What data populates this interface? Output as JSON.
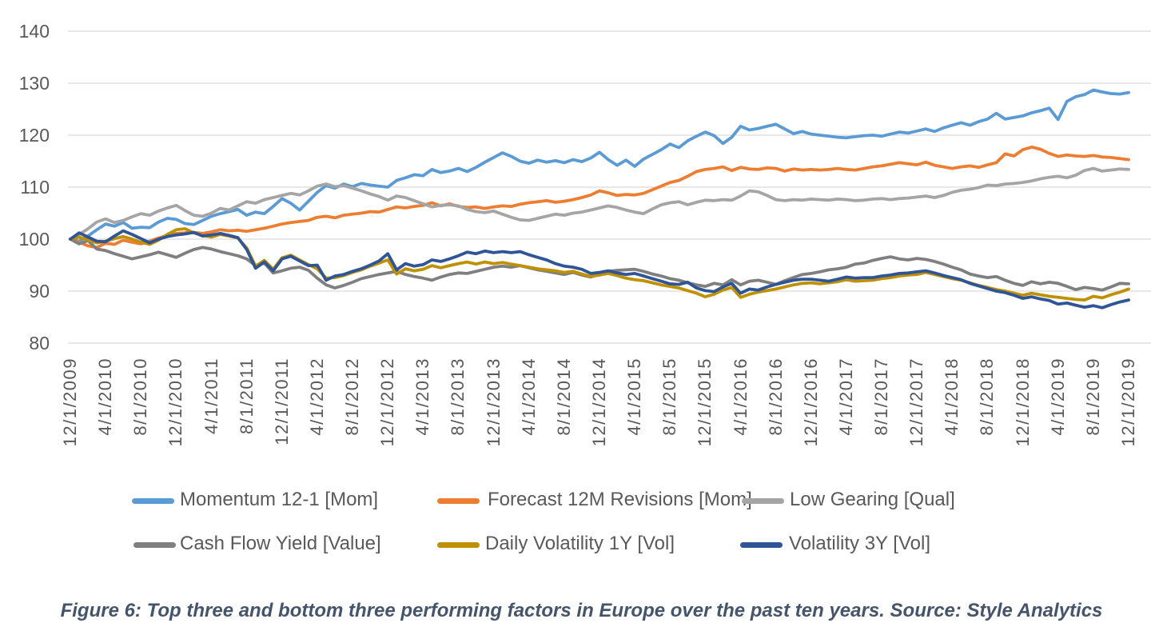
{
  "chart_data": {
    "type": "line",
    "title": "",
    "xlabel": "",
    "ylabel": "",
    "ylim": [
      80,
      140
    ],
    "y_ticks": [
      140,
      130,
      120,
      110,
      100,
      90,
      80
    ],
    "grid": "horizontal",
    "legend_position": "bottom",
    "x_tick_labels": [
      "12/1/2009",
      "4/1/2010",
      "8/1/2010",
      "12/1/2010",
      "4/1/2011",
      "8/1/2011",
      "12/1/2011",
      "4/1/2012",
      "8/1/2012",
      "12/1/2012",
      "4/1/2013",
      "8/1/2013",
      "12/1/2013",
      "4/1/2014",
      "8/1/2014",
      "12/1/2014",
      "4/1/2015",
      "8/1/2015",
      "12/1/2015",
      "4/1/2016",
      "8/1/2016",
      "12/1/2016",
      "4/1/2017",
      "8/1/2017",
      "12/1/2017",
      "4/1/2018",
      "8/1/2018",
      "12/1/2018",
      "4/1/2019",
      "8/1/2019",
      "12/1/2019"
    ],
    "x_months_per_tick": 4,
    "x_start": "12/1/2009",
    "x_interval": "monthly",
    "series": [
      {
        "name": "Momentum 12-1 [Mom]",
        "color": "#5B9BD5",
        "values": [
          100,
          99.6,
          100.6,
          101.8,
          102.9,
          102.5,
          103.2,
          102.1,
          102.3,
          102.2,
          103.3,
          104,
          103.8,
          103,
          102.8,
          103.6,
          104.4,
          104.9,
          105.3,
          105.7,
          104.6,
          105.2,
          104.9,
          106.3,
          107.8,
          106.9,
          105.6,
          107.3,
          109,
          110.3,
          109.8,
          110.6,
          110.1,
          110.7,
          110.4,
          110.2,
          110,
          111.3,
          111.8,
          112.4,
          112.2,
          113.4,
          112.8,
          113.1,
          113.6,
          113,
          113.8,
          114.8,
          115.7,
          116.6,
          115.9,
          115,
          114.6,
          115.2,
          114.8,
          115.1,
          114.7,
          115.3,
          114.9,
          115.6,
          116.7,
          115.3,
          114.2,
          115.2,
          114,
          115.4,
          116.3,
          117.2,
          118.3,
          117.6,
          118.9,
          119.8,
          120.6,
          119.9,
          118.4,
          119.6,
          121.7,
          121,
          121.3,
          121.7,
          122.1,
          121.2,
          120.3,
          120.7,
          120.2,
          120,
          119.8,
          119.6,
          119.5,
          119.7,
          119.9,
          120,
          119.8,
          120.2,
          120.6,
          120.4,
          120.8,
          121.2,
          120.7,
          121.4,
          121.9,
          122.4,
          121.9,
          122.6,
          123.1,
          124.2,
          123.1,
          123.4,
          123.7,
          124.3,
          124.7,
          125.2,
          123,
          126.5,
          127.4,
          127.8,
          128.7,
          128.3,
          128,
          127.9,
          128.2
        ]
      },
      {
        "name": "Forecast 12M Revisions [Mom]",
        "color": "#ED7D31",
        "values": [
          100,
          99.4,
          98.7,
          98.4,
          99.2,
          99,
          99.8,
          99.4,
          99.1,
          99.6,
          100.2,
          100.7,
          101.1,
          101.2,
          101.3,
          101.1,
          101.4,
          101.8,
          101.6,
          101.7,
          101.5,
          101.8,
          102.1,
          102.5,
          102.9,
          103.2,
          103.4,
          103.6,
          104.2,
          104.4,
          104.1,
          104.6,
          104.8,
          105,
          105.3,
          105.2,
          105.7,
          106.2,
          106,
          106.3,
          106.5,
          107,
          106.4,
          106.8,
          106.3,
          106.1,
          106.2,
          105.9,
          106.2,
          106.4,
          106.3,
          106.7,
          107,
          107.2,
          107.4,
          107.1,
          107.3,
          107.6,
          108,
          108.5,
          109.3,
          108.9,
          108.4,
          108.6,
          108.5,
          108.8,
          109.5,
          110.2,
          110.9,
          111.3,
          112.1,
          113,
          113.4,
          113.6,
          113.9,
          113.2,
          113.8,
          113.5,
          113.4,
          113.7,
          113.6,
          113.1,
          113.5,
          113.3,
          113.4,
          113.3,
          113.4,
          113.6,
          113.4,
          113.3,
          113.6,
          113.9,
          114.1,
          114.4,
          114.7,
          114.5,
          114.3,
          114.8,
          114.2,
          113.9,
          113.6,
          113.9,
          114.1,
          113.8,
          114.3,
          114.7,
          116.4,
          116,
          117.2,
          117.7,
          117.3,
          116.5,
          115.9,
          116.2,
          116,
          115.9,
          116.1,
          115.8,
          115.7,
          115.5,
          115.3
        ]
      },
      {
        "name": "Low Gearing [Qual]",
        "color": "#A5A5A5",
        "values": [
          100,
          100.9,
          102,
          103.3,
          103.9,
          103.2,
          103.6,
          104.3,
          104.9,
          104.6,
          105.4,
          106,
          106.5,
          105.5,
          104.6,
          104.4,
          105,
          105.9,
          105.6,
          106.4,
          107.2,
          106.9,
          107.6,
          108,
          108.4,
          108.8,
          108.5,
          109.3,
          110.2,
          110.6,
          110.1,
          110.3,
          109.8,
          109.3,
          108.7,
          108.2,
          107.5,
          108.3,
          108,
          107.4,
          106.8,
          106.2,
          106.5,
          106.6,
          106.4,
          105.7,
          105.3,
          105.1,
          105.4,
          104.8,
          104.2,
          103.7,
          103.6,
          104,
          104.4,
          104.8,
          104.6,
          105,
          105.2,
          105.6,
          106,
          106.4,
          106.1,
          105.6,
          105.2,
          104.9,
          105.8,
          106.6,
          107,
          107.2,
          106.6,
          107.1,
          107.5,
          107.4,
          107.6,
          107.5,
          108.3,
          109.3,
          109.1,
          108.4,
          107.6,
          107.4,
          107.6,
          107.5,
          107.7,
          107.6,
          107.5,
          107.7,
          107.6,
          107.4,
          107.5,
          107.7,
          107.8,
          107.6,
          107.8,
          107.9,
          108.1,
          108.3,
          108,
          108.4,
          109,
          109.4,
          109.6,
          109.9,
          110.4,
          110.3,
          110.6,
          110.7,
          110.9,
          111.2,
          111.6,
          111.9,
          112.1,
          111.8,
          112.3,
          113.2,
          113.6,
          113.1,
          113.3,
          113.5,
          113.4
        ]
      },
      {
        "name": "Cash Flow Yield [Value]",
        "color": "#7F7F7F",
        "values": [
          100,
          99.1,
          99.7,
          98.1,
          97.8,
          97.2,
          96.7,
          96.2,
          96.6,
          97,
          97.5,
          97,
          96.5,
          97.3,
          98,
          98.4,
          98.1,
          97.6,
          97.2,
          96.8,
          96.2,
          94.9,
          95.4,
          93.5,
          93.9,
          94.4,
          94.6,
          94,
          92.5,
          91.2,
          90.6,
          91.1,
          91.7,
          92.4,
          92.8,
          93.2,
          93.5,
          93.8,
          93.2,
          92.8,
          92.5,
          92.1,
          92.7,
          93.2,
          93.5,
          93.4,
          93.8,
          94.2,
          94.6,
          94.8,
          94.6,
          94.9,
          94.5,
          94.1,
          93.8,
          93.5,
          93.2,
          93.6,
          93.1,
          92.7,
          93.3,
          93.8,
          94,
          94.1,
          94.2,
          93.8,
          93.3,
          92.9,
          92.4,
          92.1,
          91.6,
          91.2,
          90.9,
          91.5,
          91.2,
          92.2,
          91.2,
          91.9,
          92.1,
          91.7,
          91.3,
          92,
          92.6,
          93.2,
          93.4,
          93.7,
          94.1,
          94.3,
          94.6,
          95.2,
          95.4,
          95.9,
          96.3,
          96.6,
          96.2,
          96,
          96.3,
          96.1,
          95.7,
          95.2,
          94.6,
          94.1,
          93.3,
          92.9,
          92.6,
          92.8,
          92.1,
          91.5,
          91.1,
          91.8,
          91.4,
          91.7,
          91.5,
          90.9,
          90.3,
          90.7,
          90.5,
          90.2,
          90.8,
          91.5,
          91.4
        ]
      },
      {
        "name": "Daily Volatility 1Y [Vol]",
        "color": "#BF9000",
        "values": [
          100,
          100.4,
          99.8,
          99.3,
          99.6,
          100.1,
          100.5,
          100,
          99.4,
          99,
          99.8,
          100.9,
          101.8,
          102,
          101.2,
          100.7,
          100.4,
          100.9,
          100.6,
          100.2,
          98.3,
          94.8,
          95.9,
          94.2,
          96.4,
          96.9,
          96,
          95.1,
          94.3,
          92.5,
          92.6,
          93,
          93.6,
          94.1,
          94.8,
          95.4,
          96,
          93.3,
          94.3,
          93.9,
          94.2,
          94.9,
          94.5,
          94.9,
          95.3,
          95.6,
          95.2,
          95.6,
          95.3,
          95.5,
          95.2,
          94.9,
          94.6,
          94.3,
          94.1,
          93.9,
          93.6,
          93.8,
          93.3,
          92.8,
          93.1,
          93.4,
          93,
          92.5,
          92.2,
          92,
          91.6,
          91.2,
          90.9,
          90.6,
          90.1,
          89.6,
          88.9,
          89.4,
          90.2,
          90.7,
          88.8,
          89.4,
          89.8,
          90.1,
          90.4,
          90.8,
          91.2,
          91.5,
          91.6,
          91.4,
          91.6,
          91.8,
          92.2,
          91.9,
          92,
          92.1,
          92.4,
          92.6,
          92.9,
          93.1,
          93.2,
          93.6,
          93.2,
          92.8,
          92.4,
          92.1,
          91.6,
          91.1,
          90.7,
          90.3,
          90,
          89.6,
          89.2,
          89.6,
          89.3,
          89,
          88.8,
          88.6,
          88.4,
          88.3,
          89,
          88.7,
          89.3,
          89.8,
          90.4
        ]
      },
      {
        "name": "Volatility 3Y [Vol]",
        "color": "#2F5597",
        "values": [
          100,
          101.2,
          100.4,
          99.6,
          99.5,
          100.6,
          101.6,
          100.9,
          100.1,
          99.3,
          100,
          100.5,
          100.8,
          101,
          101.3,
          100.6,
          100.8,
          101.1,
          100.7,
          100.3,
          98,
          94.4,
          95.6,
          93.9,
          96.2,
          96.7,
          95.8,
          94.9,
          95,
          92.1,
          92.9,
          93.2,
          93.8,
          94.3,
          95,
          95.8,
          97.2,
          94.1,
          95.3,
          94.8,
          95.1,
          96,
          95.7,
          96.2,
          96.8,
          97.5,
          97.2,
          97.7,
          97.4,
          97.6,
          97.4,
          97.6,
          97,
          96.5,
          96,
          95.3,
          94.8,
          94.6,
          94.2,
          93.4,
          93.6,
          93.9,
          93.5,
          93.2,
          93.4,
          92.9,
          92.4,
          91.9,
          91.4,
          91.3,
          91.7,
          90.6,
          90.1,
          89.9,
          90.8,
          91.5,
          89.6,
          90.4,
          90.2,
          90.8,
          91.3,
          91.7,
          92.1,
          92.3,
          92.3,
          92.1,
          91.9,
          92.3,
          92.7,
          92.5,
          92.6,
          92.6,
          92.9,
          93.1,
          93.4,
          93.5,
          93.7,
          93.9,
          93.5,
          93,
          92.6,
          92.2,
          91.5,
          91,
          90.5,
          90,
          89.7,
          89.2,
          88.6,
          88.9,
          88.5,
          88.2,
          87.5,
          87.7,
          87.3,
          86.9,
          87.2,
          86.8,
          87.4,
          87.9,
          88.3
        ]
      }
    ],
    "caption": "Figure 6: Top three and bottom three performing factors in Europe over the past ten years. Source: Style Analytics",
    "colors": {
      "gridline": "#D9D9D9",
      "axis_text": "#595959",
      "legend_text": "#595959",
      "caption_text": "#44546A"
    }
  }
}
